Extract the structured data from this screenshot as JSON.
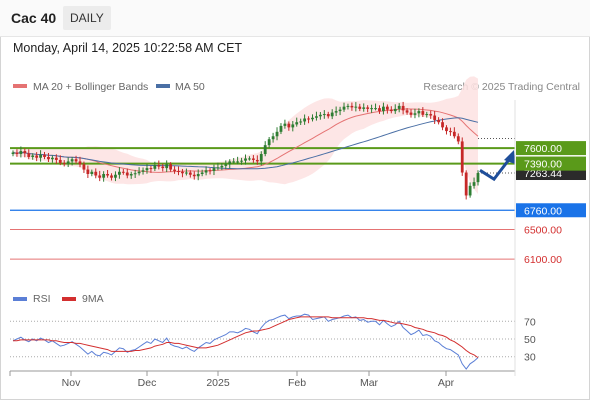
{
  "header": {
    "symbol": "Cac 40",
    "period": "DAILY",
    "timestamp": "Monday, April 14, 2025 10:22:58 AM CET"
  },
  "legend": {
    "bb_label": "MA 20 + Bollinger Bands",
    "ma50_label": "MA 50",
    "credit": "Research © 2025 Trading Central"
  },
  "rsi_legend": {
    "rsi_label": "RSI",
    "ma_label": "9MA"
  },
  "colors": {
    "up": "#2e7d32",
    "down": "#c62828",
    "ma20": "#e57373",
    "bands_fill": "#fde2e2",
    "ma50": "#4a6fa5",
    "resistance": "#5a9a1a",
    "support": "#1a73e8",
    "target": "#e57373",
    "rsi": "#5b7fd6",
    "rsi_ma": "#d32f2f",
    "forecast": "#1f4e9a"
  },
  "chart_data": [
    {
      "type": "candlestick",
      "x_labels": [
        "Nov",
        "Dec",
        "2025",
        "Feb",
        "Mar",
        "Apr"
      ],
      "price_range": [
        5750,
        8250
      ],
      "current_price": "7263.44",
      "levels": [
        {
          "label": "7600.00",
          "value": 7600,
          "kind": "resistance"
        },
        {
          "label": "7390.00",
          "value": 7390,
          "kind": "resistance"
        },
        {
          "label": "6760.00",
          "value": 6760,
          "kind": "support"
        },
        {
          "label": "6500.00",
          "value": 6500,
          "kind": "target"
        },
        {
          "label": "6100.00",
          "value": 6100,
          "kind": "target"
        }
      ],
      "series": [
        {
          "name": "MA 20 + Bollinger Bands"
        },
        {
          "name": "MA 50"
        }
      ],
      "candles_close": [
        7540,
        7520,
        7560,
        7530,
        7480,
        7500,
        7470,
        7510,
        7480,
        7450,
        7470,
        7440,
        7400,
        7390,
        7420,
        7450,
        7420,
        7380,
        7310,
        7250,
        7280,
        7230,
        7200,
        7250,
        7230,
        7200,
        7240,
        7280,
        7270,
        7230,
        7250,
        7260,
        7280,
        7300,
        7330,
        7320,
        7370,
        7350,
        7330,
        7380,
        7310,
        7290,
        7280,
        7260,
        7270,
        7240,
        7220,
        7250,
        7270,
        7300,
        7290,
        7330,
        7340,
        7360,
        7380,
        7420,
        7420,
        7420,
        7430,
        7460,
        7460,
        7440,
        7420,
        7520,
        7640,
        7720,
        7760,
        7820,
        7900,
        7930,
        7880,
        7920,
        7950,
        7960,
        8000,
        7990,
        8010,
        8030,
        8050,
        8060,
        8030,
        8080,
        8100,
        8120,
        8160,
        8170,
        8150,
        8160,
        8130,
        8150,
        8130,
        8140,
        8140,
        8100,
        8160,
        8120,
        8100,
        8130,
        8170,
        8110,
        8080,
        8050,
        8070,
        8100,
        8050,
        8060,
        8040,
        7980,
        7950,
        7880,
        7830,
        7820,
        7760,
        7690,
        7270,
        6960,
        7090,
        7140,
        7263
      ]
    },
    {
      "type": "line",
      "title": "RSI",
      "y_ticks": [
        "70",
        "50",
        "30"
      ],
      "ylim": [
        15,
        85
      ],
      "series": [
        {
          "name": "RSI",
          "values": [
            48,
            50,
            52,
            49,
            47,
            50,
            48,
            51,
            49,
            46,
            48,
            45,
            42,
            43,
            45,
            47,
            44,
            41,
            37,
            33,
            36,
            32,
            31,
            35,
            34,
            32,
            36,
            40,
            39,
            35,
            37,
            38,
            41,
            44,
            47,
            45,
            50,
            48,
            46,
            51,
            44,
            42,
            41,
            39,
            41,
            38,
            36,
            40,
            43,
            46,
            45,
            49,
            51,
            53,
            55,
            58,
            58,
            57,
            59,
            62,
            61,
            58,
            56,
            63,
            68,
            71,
            72,
            74,
            76,
            77,
            73,
            75,
            76,
            76,
            78,
            77,
            72,
            73,
            74,
            75,
            70,
            72,
            73,
            74,
            76,
            77,
            74,
            75,
            71,
            72,
            69,
            70,
            70,
            66,
            71,
            67,
            64,
            66,
            70,
            63,
            59,
            55,
            57,
            60,
            54,
            55,
            53,
            48,
            46,
            42,
            39,
            38,
            35,
            32,
            22,
            16,
            22,
            25,
            29
          ]
        },
        {
          "name": "9MA",
          "values": [
            48,
            48,
            49,
            49,
            49,
            49,
            49,
            49,
            49,
            49,
            48,
            48,
            47,
            46,
            46,
            46,
            45,
            45,
            44,
            43,
            42,
            41,
            40,
            39,
            38,
            36,
            36,
            36,
            36,
            36,
            36,
            37,
            37,
            38,
            39,
            40,
            42,
            43,
            44,
            46,
            46,
            45,
            45,
            44,
            43,
            42,
            41,
            40,
            40,
            40,
            41,
            42,
            43,
            45,
            47,
            49,
            51,
            53,
            55,
            57,
            58,
            59,
            59,
            60,
            61,
            62,
            64,
            66,
            68,
            70,
            72,
            73,
            74,
            75,
            75,
            75,
            75,
            75,
            75,
            75,
            75,
            74,
            74,
            74,
            74,
            74,
            74,
            74,
            74,
            74,
            73,
            73,
            72,
            71,
            71,
            70,
            69,
            68,
            68,
            67,
            66,
            65,
            63,
            62,
            61,
            59,
            58,
            57,
            55,
            54,
            52,
            49,
            47,
            44,
            41,
            37,
            34,
            32,
            29
          ]
        }
      ]
    }
  ]
}
